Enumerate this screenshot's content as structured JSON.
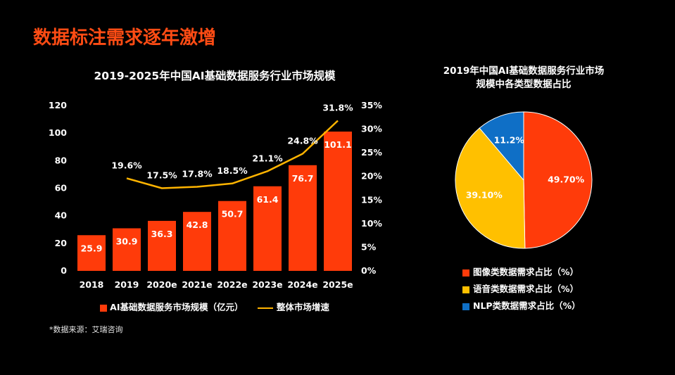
{
  "slide": {
    "title": "数据标注需求逐年激增",
    "source": "*数据来源：艾瑞咨询"
  },
  "chart_data": [
    {
      "type": "bar",
      "title": "2019-2025年中国AI基础数据服务行业市场规模",
      "categories": [
        "2018",
        "2019",
        "2020e",
        "2021e",
        "2022e",
        "2023e",
        "2024e",
        "2025e"
      ],
      "series": [
        {
          "name": "AI基础数据服务市场规模（亿元）",
          "type": "bar",
          "axis": "left",
          "color": "#ff3b0a",
          "values": [
            25.9,
            30.9,
            36.3,
            42.8,
            50.7,
            61.4,
            76.7,
            101.1
          ],
          "labels": [
            "25.9",
            "30.9",
            "36.3",
            "42.8",
            "50.7",
            "61.4",
            "76.7",
            "101.1"
          ]
        },
        {
          "name": "整体市场增速",
          "type": "line",
          "axis": "right",
          "color": "#ffb400",
          "values": [
            null,
            19.6,
            17.5,
            17.8,
            18.5,
            21.1,
            24.8,
            31.8
          ],
          "labels": [
            "",
            "19.6%",
            "17.5%",
            "17.8%",
            "18.5%",
            "21.1%",
            "24.8%",
            "31.8%"
          ]
        }
      ],
      "y_left": {
        "ylim": [
          0,
          120
        ],
        "ticks": [
          "0",
          "20",
          "40",
          "60",
          "80",
          "100",
          "120"
        ]
      },
      "y_right": {
        "ylim": [
          0,
          35
        ],
        "ticks": [
          "0%",
          "5%",
          "10%",
          "15%",
          "20%",
          "25%",
          "30%",
          "35%"
        ]
      },
      "grid": false,
      "legend": "bottom"
    },
    {
      "type": "pie",
      "title_lines": [
        "2019年中国AI基础数据服务行业市场",
        "规模中各类型数据占比"
      ],
      "slices": [
        {
          "name": "图像类数据需求占比（%）",
          "value": 49.7,
          "label": "49.70%",
          "color": "#ff3b0a"
        },
        {
          "name": "语音类数据需求占比（%）",
          "value": 39.1,
          "label": "39.10%",
          "color": "#ffc000"
        },
        {
          "name": "NLP类数据需求占比（%）",
          "value": 11.2,
          "label": "11.2%",
          "color": "#0f6fc6"
        }
      ],
      "legend": "bottom"
    }
  ]
}
